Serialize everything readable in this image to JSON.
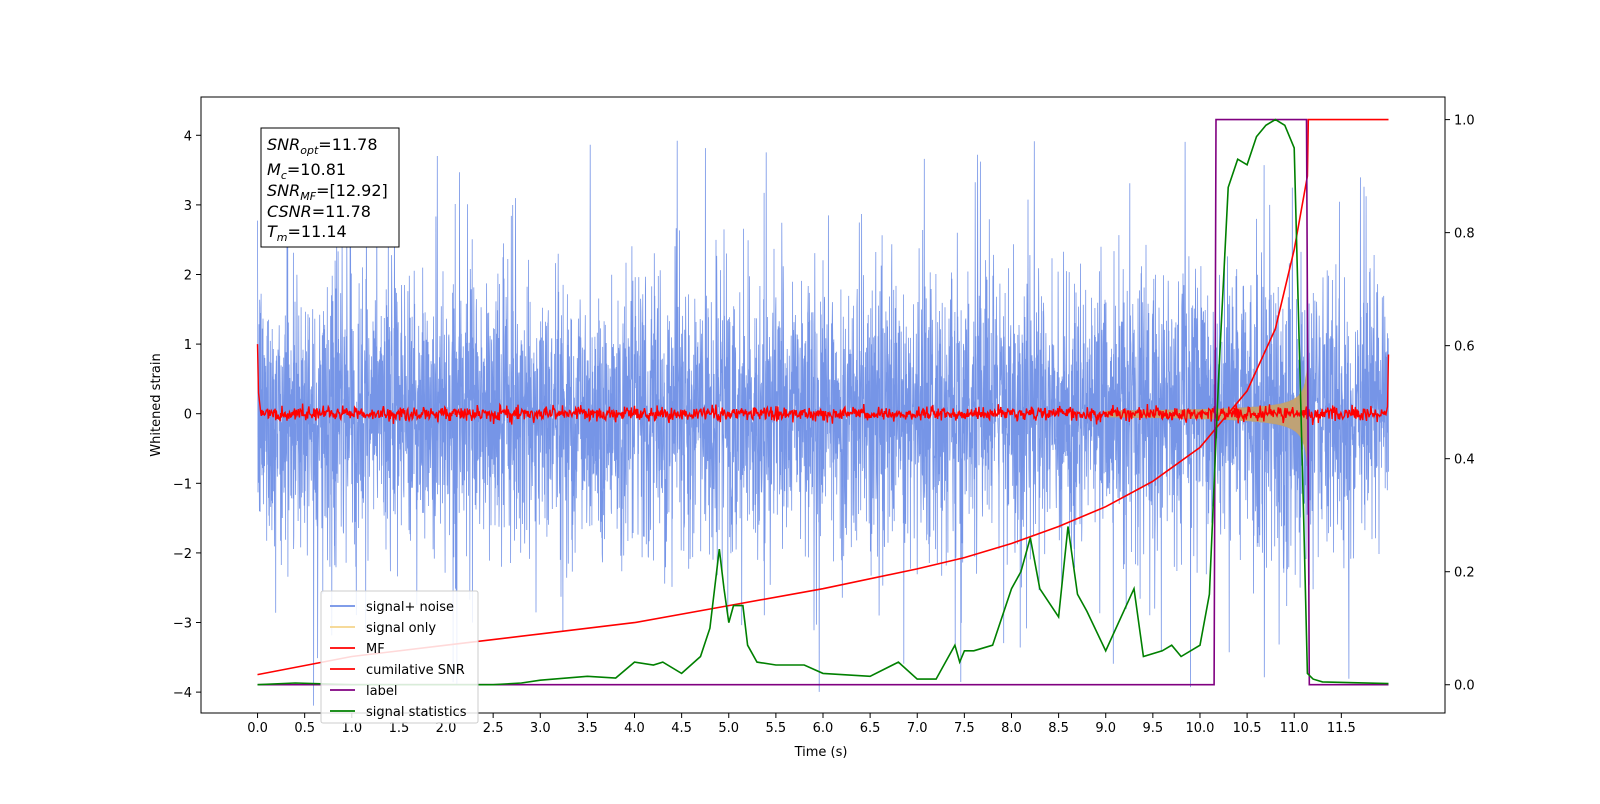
{
  "chart_data": {
    "type": "line",
    "xlabel": "Time (s)",
    "ylabel": "Whitened strain",
    "xlim": [
      -0.6,
      12.6
    ],
    "ylim_left": [
      -4.3,
      4.55
    ],
    "ylim_right": [
      -0.05,
      1.04
    ],
    "x_ticks": [
      "0.0",
      "0.5",
      "1.0",
      "1.5",
      "2.0",
      "2.5",
      "3.0",
      "3.5",
      "4.0",
      "4.5",
      "5.0",
      "5.5",
      "6.0",
      "6.5",
      "7.0",
      "7.5",
      "8.0",
      "8.5",
      "9.0",
      "9.5",
      "10.0",
      "10.5",
      "11.0",
      "11.5"
    ],
    "y_ticks_left": [
      "4",
      "3",
      "2",
      "1",
      "0",
      "−1",
      "−2",
      "−3",
      "−4"
    ],
    "y_ticks_right": [
      "1.0",
      "0.8",
      "0.6",
      "0.4",
      "0.2",
      "0.0"
    ],
    "grid": false,
    "legend_position": "lower-left",
    "annotation": {
      "snr_opt": "=11.78",
      "mc": "=10.81",
      "snr_mf": "=[12.92]",
      "csnr": "=11.78",
      "tm": "=11.14"
    },
    "series": [
      {
        "name": "signal+ noise",
        "axis": "left",
        "color": "#6f8fe6",
        "description_values": "whitened noise approx N(0,1) with peaks up to about 4.2 and troughs near -3.5, 0 to 12 s"
      },
      {
        "name": "signal only",
        "axis": "left",
        "color": "#f4d48c",
        "chirp_start": 9.0,
        "chirp_end": 11.14,
        "amplitude_end": 0.9
      },
      {
        "name": "MF",
        "axis": "left",
        "color": "#ff0000",
        "values_note": "noisy around 0 with amplitude about 0.15; start 1.0 at x=0, end 0.85 at x=12"
      },
      {
        "name": "cumilative SNR",
        "axis": "right",
        "color": "#ff0000",
        "x": [
          0.0,
          1.0,
          2.0,
          3.0,
          4.0,
          5.0,
          6.0,
          7.0,
          7.5,
          8.0,
          8.5,
          9.0,
          9.5,
          10.0,
          10.5,
          10.8,
          11.0,
          11.14,
          11.15,
          12.0
        ],
        "y": [
          0.018,
          0.05,
          0.07,
          0.09,
          0.11,
          0.14,
          0.17,
          0.205,
          0.225,
          0.25,
          0.28,
          0.315,
          0.36,
          0.42,
          0.52,
          0.63,
          0.77,
          0.9,
          1.0,
          1.0
        ]
      },
      {
        "name": "label",
        "axis": "right",
        "color": "#800080",
        "x": [
          0.0,
          10.15,
          10.17,
          11.13,
          11.16,
          12.0
        ],
        "y": [
          0.0,
          0.0,
          1.0,
          1.0,
          0.0,
          0.0
        ]
      },
      {
        "name": "signal statistics",
        "axis": "right",
        "color": "#008000",
        "x": [
          0.0,
          0.4,
          1.0,
          2.0,
          2.5,
          2.8,
          3.0,
          3.5,
          3.8,
          4.0,
          4.2,
          4.3,
          4.5,
          4.7,
          4.8,
          4.9,
          4.95,
          5.0,
          5.05,
          5.1,
          5.15,
          5.2,
          5.3,
          5.5,
          5.8,
          6.0,
          6.5,
          6.8,
          7.0,
          7.2,
          7.3,
          7.4,
          7.45,
          7.5,
          7.6,
          7.8,
          8.0,
          8.1,
          8.2,
          8.3,
          8.5,
          8.6,
          8.7,
          8.8,
          9.0,
          9.3,
          9.4,
          9.6,
          9.7,
          9.8,
          10.0,
          10.1,
          10.2,
          10.3,
          10.4,
          10.5,
          10.6,
          10.7,
          10.8,
          10.9,
          11.0,
          11.1,
          11.14,
          11.2,
          11.3,
          12.0
        ],
        "y": [
          0.0,
          0.003,
          0.0,
          0.0,
          0.0,
          0.003,
          0.008,
          0.015,
          0.012,
          0.04,
          0.035,
          0.04,
          0.02,
          0.05,
          0.1,
          0.24,
          0.17,
          0.11,
          0.14,
          0.14,
          0.14,
          0.07,
          0.04,
          0.035,
          0.035,
          0.02,
          0.015,
          0.04,
          0.01,
          0.01,
          0.04,
          0.07,
          0.04,
          0.06,
          0.06,
          0.07,
          0.17,
          0.2,
          0.26,
          0.17,
          0.12,
          0.28,
          0.16,
          0.13,
          0.06,
          0.17,
          0.05,
          0.06,
          0.07,
          0.05,
          0.07,
          0.16,
          0.55,
          0.88,
          0.93,
          0.92,
          0.97,
          0.99,
          1.0,
          0.99,
          0.95,
          0.3,
          0.02,
          0.01,
          0.005,
          0.002
        ]
      }
    ]
  }
}
